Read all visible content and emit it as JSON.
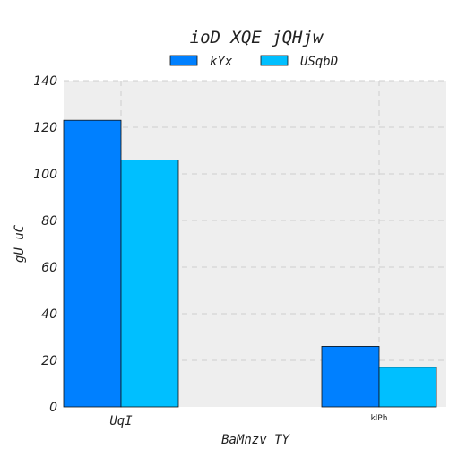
{
  "chart_data": {
    "type": "bar",
    "title": "ioD XQE jQHjw",
    "xlabel": "BaMnzv TY",
    "ylabel": "gU uC",
    "categories": [
      "UqI",
      "klPh"
    ],
    "series": [
      {
        "name": "kYx",
        "values": [
          123,
          26
        ],
        "color": "#0080ff"
      },
      {
        "name": "USqbD",
        "values": [
          106,
          17
        ],
        "color": "#00bfff"
      }
    ],
    "ylim": [
      0,
      140
    ],
    "yticks": [
      0,
      20,
      40,
      60,
      80,
      100,
      120,
      140
    ],
    "grid": true,
    "legend_position": "top-center",
    "background_color": "#eeeeee"
  }
}
